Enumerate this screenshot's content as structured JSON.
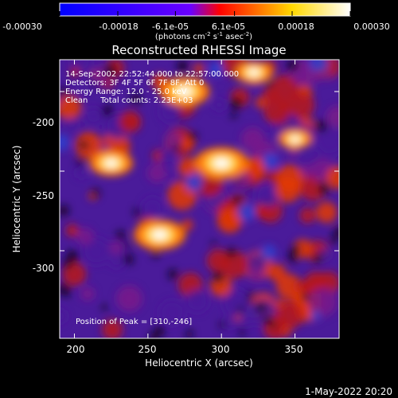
{
  "colorbar": {
    "ticks": [
      "-0.00030",
      "-0.00018",
      "-6.1e-05",
      "6.1e-05",
      "0.00018",
      "0.00030"
    ],
    "tick_values": [
      -0.0003,
      -0.00018,
      -6.1e-05,
      6.1e-05,
      0.00018,
      0.0003
    ],
    "range": [
      -0.0003,
      0.0003
    ],
    "unit_label": "(photons cm",
    "unit_exp1": "-2",
    "unit_mid": " s",
    "unit_exp2": "-1",
    "unit_end": " asec",
    "unit_exp3": "-2",
    "unit_close": ")",
    "colors": [
      "#0000ff",
      "#6a00ff",
      "#ff0000",
      "#ffd800",
      "#ffffff"
    ]
  },
  "chart_data": {
    "type": "heatmap",
    "title": "Reconstructed RHESSI Image",
    "xlabel": "Heliocentric X (arcsec)",
    "ylabel": "Heliocentric Y (arcsec)",
    "xlim": [
      190,
      380
    ],
    "ylim": [
      -355,
      -180
    ],
    "xticks": [
      200,
      250,
      300,
      350
    ],
    "yticks": [
      -200,
      -250,
      -300
    ],
    "annotations": [
      "14-Sep-2002 22:52:44.000 to 22:57:00.000",
      "Detectors: 3F 4F 5F 6F 7F 8F, Att 0",
      "Energy Range: 12.0 - 25.0 keV",
      "Clean     Total counts: 2.23E+03"
    ],
    "peak_label": "Position of Peak = [310,-246]",
    "peak": [
      310,
      -246
    ],
    "bright_sources": [
      {
        "x": 275,
        "y": -200,
        "v": 0.92
      },
      {
        "x": 300,
        "y": -245,
        "v": 1.0
      },
      {
        "x": 258,
        "y": -290,
        "v": 0.95
      },
      {
        "x": 225,
        "y": -245,
        "v": 0.8
      },
      {
        "x": 322,
        "y": -188,
        "v": 0.7
      },
      {
        "x": 350,
        "y": -230,
        "v": 0.6
      }
    ]
  },
  "footer": {
    "timestamp": "1-May-2022 20:20"
  }
}
